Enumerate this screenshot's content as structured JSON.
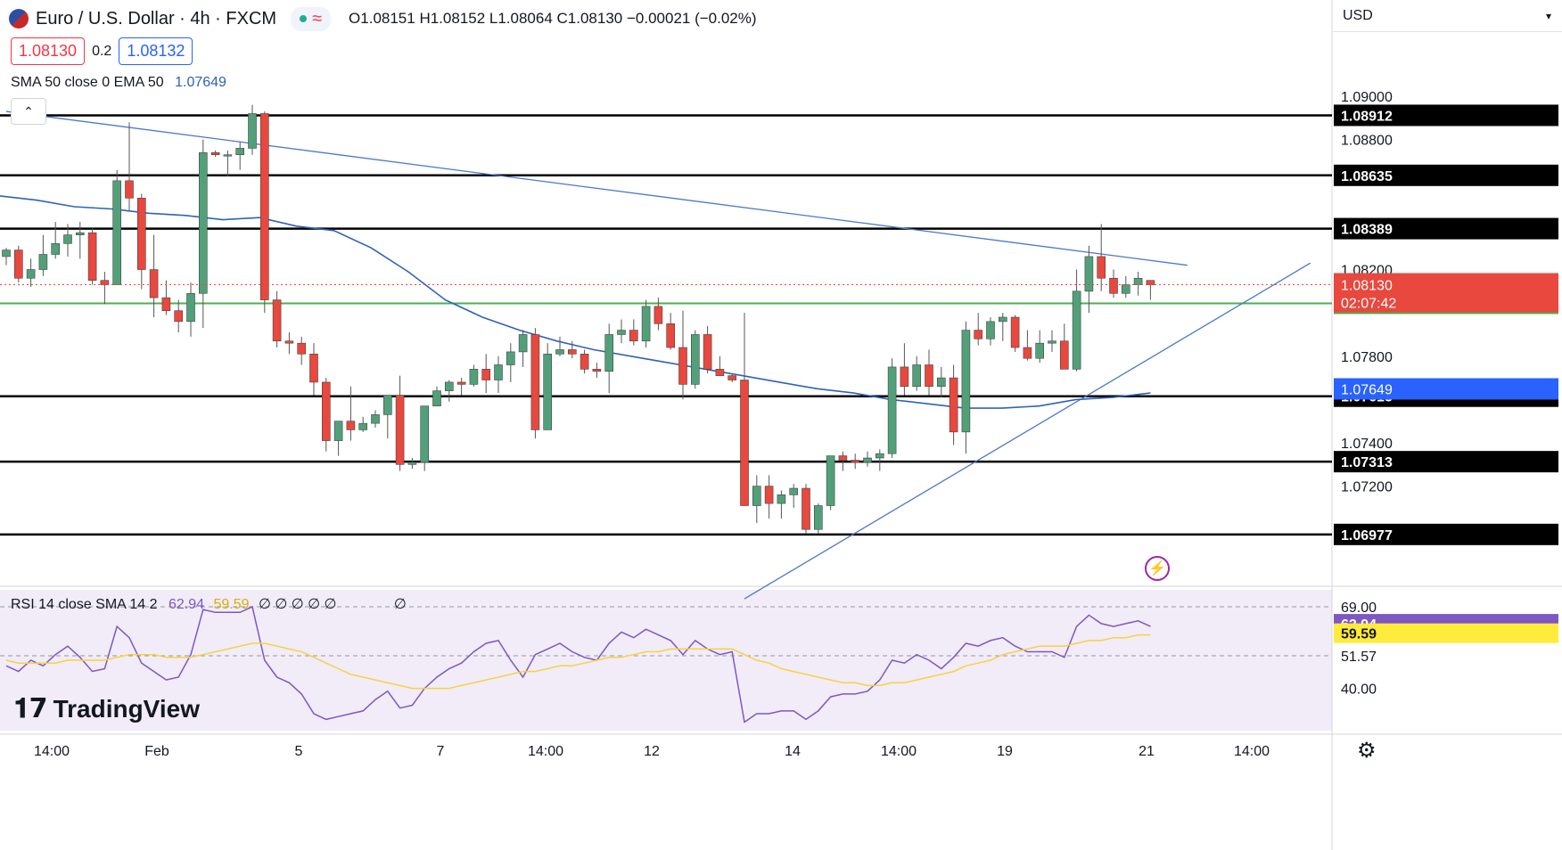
{
  "header": {
    "symbol": "Euro / U.S. Dollar · 4h · FXCM",
    "ohlc": "O1.08151 H1.08152 L1.08064 C1.08130 −0.00021 (−0.02%)",
    "bid": "1.08130",
    "spread": "0.2",
    "ask": "1.08132",
    "currency": "USD"
  },
  "indicator_labels": {
    "sma": "SMA 50 close 0 EMA 50",
    "sma_value": "1.07649",
    "rsi": "RSI 14 close SMA 14 2",
    "rsi_value": "62.94",
    "rsi_sma_value": "59.59",
    "rsi_extra": "∅ ∅ ∅ ∅ ∅",
    "rsi_extra2": "∅"
  },
  "colors": {
    "up": "#52a07a",
    "down": "#e8483e",
    "sma": "#2f62b8",
    "trend": "#4a78c8",
    "support_green": "#4caf50",
    "rsi_line": "#7e57c2",
    "rsi_sma": "#f5d33f",
    "rsi_bg": "#ede7f6"
  },
  "logo": "TradingView",
  "icons": [
    "flag-icon",
    "market-status-icon",
    "collapse-icon",
    "lightning-icon",
    "settings-icon"
  ],
  "chart_data": [
    {
      "type": "candlestick",
      "title": "Euro / U.S. Dollar · 4h · FXCM",
      "y_ticks": [
        "1.09000",
        "1.08800",
        "1.08200",
        "1.07800",
        "1.07400",
        "1.07200"
      ],
      "ylim": [
        1.0675,
        1.0928
      ],
      "x_ticks": [
        "14:00",
        "Feb",
        "5",
        "7",
        "14:00",
        "12",
        "14",
        "14:00",
        "19",
        "21",
        "14:00"
      ],
      "horizontal_levels": [
        {
          "value": 1.08912,
          "label": "1.08912"
        },
        {
          "value": 1.08635,
          "label": "1.08635"
        },
        {
          "value": 1.08389,
          "label": "1.08389"
        },
        {
          "value": 1.07615,
          "label": "1.07615"
        },
        {
          "value": 1.07313,
          "label": "1.07313"
        },
        {
          "value": 1.06977,
          "label": "1.06977"
        }
      ],
      "support_level": {
        "value": 1.08044,
        "label": "1.08044"
      },
      "price_label": {
        "value": 1.0813,
        "label": "1.08130",
        "countdown": "02:07:42"
      },
      "sma_label": {
        "value": 1.07649,
        "label": "1.07649"
      },
      "candles": [
        [
          1.0826,
          1.083,
          1.0822,
          1.0829
        ],
        [
          1.0829,
          1.0831,
          1.0814,
          1.0816
        ],
        [
          1.0816,
          1.0825,
          1.0812,
          1.082
        ],
        [
          1.082,
          1.0836,
          1.0817,
          1.0827
        ],
        [
          1.0827,
          1.0842,
          1.0825,
          1.0832
        ],
        [
          1.0832,
          1.0841,
          1.0826,
          1.0836
        ],
        [
          1.0836,
          1.0842,
          1.0825,
          1.0837
        ],
        [
          1.0837,
          1.0839,
          1.0813,
          1.0815
        ],
        [
          1.0815,
          1.0819,
          1.0804,
          1.0813
        ],
        [
          1.0813,
          1.0866,
          1.0813,
          1.0861
        ],
        [
          1.0861,
          1.0888,
          1.0847,
          1.0853
        ],
        [
          1.0853,
          1.0855,
          1.0811,
          1.082
        ],
        [
          1.082,
          1.0836,
          1.0798,
          1.0807
        ],
        [
          1.0807,
          1.0815,
          1.0799,
          1.0801
        ],
        [
          1.0801,
          1.0806,
          1.0791,
          1.0796
        ],
        [
          1.0796,
          1.0814,
          1.0789,
          1.0809
        ],
        [
          1.0809,
          1.088,
          1.0793,
          1.0874
        ],
        [
          1.0874,
          1.0875,
          1.0872,
          1.0873
        ],
        [
          1.0873,
          1.0875,
          1.0863,
          1.0873
        ],
        [
          1.0873,
          1.0879,
          1.0866,
          1.0876
        ],
        [
          1.0876,
          1.0896,
          1.0873,
          1.0892
        ],
        [
          1.0892,
          1.0893,
          1.08,
          1.0806
        ],
        [
          1.0806,
          1.081,
          1.0784,
          1.0787
        ],
        [
          1.0787,
          1.0791,
          1.0781,
          1.0786
        ],
        [
          1.0786,
          1.0789,
          1.0776,
          1.0781
        ],
        [
          1.0781,
          1.0786,
          1.0762,
          1.0768
        ],
        [
          1.0768,
          1.077,
          1.0736,
          1.0741
        ],
        [
          1.0741,
          1.0749,
          1.0734,
          1.075
        ],
        [
          1.075,
          1.0766,
          1.0741,
          1.0746
        ],
        [
          1.0746,
          1.0752,
          1.0745,
          1.0749
        ],
        [
          1.0749,
          1.0755,
          1.0747,
          1.0753
        ],
        [
          1.0753,
          1.0762,
          1.0742,
          1.0762
        ],
        [
          1.0762,
          1.0771,
          1.0727,
          1.073
        ],
        [
          1.073,
          1.0733,
          1.0728,
          1.0731
        ],
        [
          1.0731,
          1.0757,
          1.0727,
          1.0757
        ],
        [
          1.0757,
          1.0766,
          1.0759,
          1.0764
        ],
        [
          1.0764,
          1.0769,
          1.0759,
          1.0768
        ],
        [
          1.0768,
          1.077,
          1.0762,
          1.0767
        ],
        [
          1.0767,
          1.0776,
          1.0766,
          1.0774
        ],
        [
          1.0774,
          1.0781,
          1.0763,
          1.0769
        ],
        [
          1.0769,
          1.078,
          1.0763,
          1.0776
        ],
        [
          1.0776,
          1.0786,
          1.0768,
          1.0782
        ],
        [
          1.0782,
          1.0792,
          1.0775,
          1.079
        ],
        [
          1.079,
          1.0793,
          1.0742,
          1.0746
        ],
        [
          1.0746,
          1.0786,
          1.0746,
          1.0781
        ],
        [
          1.0781,
          1.0789,
          1.078,
          1.0783
        ],
        [
          1.0783,
          1.0787,
          1.0779,
          1.0781
        ],
        [
          1.0781,
          1.0783,
          1.0772,
          1.0774
        ],
        [
          1.0774,
          1.0777,
          1.077,
          1.0773
        ],
        [
          1.0773,
          1.0795,
          1.0763,
          1.079
        ],
        [
          1.079,
          1.0797,
          1.0786,
          1.0792
        ],
        [
          1.0792,
          1.0797,
          1.0785,
          1.0787
        ],
        [
          1.0787,
          1.0806,
          1.0784,
          1.0803
        ],
        [
          1.0803,
          1.0807,
          1.0792,
          1.0795
        ],
        [
          1.0795,
          1.08,
          1.0783,
          1.0784
        ],
        [
          1.0784,
          1.0801,
          1.076,
          1.0767
        ],
        [
          1.0767,
          1.0792,
          1.0765,
          1.079
        ],
        [
          1.079,
          1.0794,
          1.0772,
          1.0774
        ],
        [
          1.0774,
          1.078,
          1.0771,
          1.0771
        ],
        [
          1.0771,
          1.0772,
          1.0768,
          1.0769
        ],
        [
          1.0769,
          1.08,
          1.0713,
          1.0711
        ],
        [
          1.0711,
          1.0725,
          1.0703,
          1.072
        ],
        [
          1.072,
          1.0725,
          1.0705,
          1.0712
        ],
        [
          1.0712,
          1.0718,
          1.0705,
          1.0716
        ],
        [
          1.0716,
          1.0721,
          1.071,
          1.0719
        ],
        [
          1.0719,
          1.0721,
          1.0698,
          1.07
        ],
        [
          1.07,
          1.0712,
          1.0698,
          1.0711
        ],
        [
          1.0711,
          1.0734,
          1.0709,
          1.0734
        ],
        [
          1.0734,
          1.0736,
          1.0727,
          1.0732
        ],
        [
          1.0732,
          1.0735,
          1.0728,
          1.0731
        ],
        [
          1.0731,
          1.0736,
          1.0729,
          1.0733
        ],
        [
          1.0733,
          1.0737,
          1.0727,
          1.0735
        ],
        [
          1.0735,
          1.0779,
          1.0733,
          1.0775
        ],
        [
          1.0775,
          1.0786,
          1.0762,
          1.0766
        ],
        [
          1.0766,
          1.078,
          1.0764,
          1.0776
        ],
        [
          1.0776,
          1.0783,
          1.0762,
          1.0766
        ],
        [
          1.0766,
          1.0775,
          1.0761,
          1.077
        ],
        [
          1.077,
          1.0776,
          1.0739,
          1.0745
        ],
        [
          1.0745,
          1.0796,
          1.0735,
          1.0792
        ],
        [
          1.0792,
          1.08,
          1.0785,
          1.0788
        ],
        [
          1.0788,
          1.0798,
          1.0785,
          1.0796
        ],
        [
          1.0796,
          1.08,
          1.0787,
          1.0798
        ],
        [
          1.0798,
          1.0799,
          1.0782,
          1.0784
        ],
        [
          1.0784,
          1.0792,
          1.0778,
          1.0779
        ],
        [
          1.0779,
          1.0792,
          1.0777,
          1.0786
        ],
        [
          1.0786,
          1.0792,
          1.0782,
          1.0787
        ],
        [
          1.0787,
          1.0795,
          1.0774,
          1.0774
        ],
        [
          1.0774,
          1.082,
          1.0773,
          1.081
        ],
        [
          1.081,
          1.0831,
          1.08,
          1.0826
        ],
        [
          1.0826,
          1.0841,
          1.081,
          1.0816
        ],
        [
          1.0816,
          1.082,
          1.0807,
          1.0809
        ],
        [
          1.0809,
          1.0817,
          1.0807,
          1.0813
        ],
        [
          1.0813,
          1.0819,
          1.0808,
          1.0816
        ],
        [
          1.0815,
          1.0815,
          1.0806,
          1.0813
        ]
      ],
      "sma50": [
        1.0854,
        1.0852,
        1.0849,
        1.0848,
        1.0846,
        1.0845,
        1.0843,
        1.0844,
        1.084,
        1.0838,
        1.083,
        1.0819,
        1.0806,
        1.0798,
        1.0792,
        1.0787,
        1.0783,
        1.078,
        1.0777,
        1.0774,
        1.0771,
        1.0768,
        1.0765,
        1.0763,
        1.076,
        1.0758,
        1.0756,
        1.0756,
        1.0757,
        1.076,
        1.0761,
        1.0763
      ],
      "trend_lines": [
        {
          "from": [
            0,
            1.0893
          ],
          "to": [
            96,
            1.0822
          ]
        },
        {
          "from": [
            60,
            1.0668
          ],
          "to": [
            106,
            1.0823
          ]
        }
      ]
    },
    {
      "type": "line",
      "title": "RSI 14 close SMA 14 2",
      "ylim": [
        25,
        75
      ],
      "y_ticks": [
        "69.00",
        "51.57",
        "40.00"
      ],
      "levels": [
        69,
        51.57
      ],
      "series": [
        {
          "name": "RSI",
          "color": "#7e57c2",
          "values": [
            48,
            46,
            50,
            48,
            52,
            55,
            51,
            46,
            47,
            62,
            58,
            49,
            46,
            43,
            44,
            52,
            68,
            67,
            67,
            67,
            69,
            50,
            44,
            42,
            38,
            31,
            29,
            30,
            31,
            32,
            36,
            39,
            33,
            34,
            40,
            44,
            47,
            49,
            53,
            56,
            57,
            50,
            44,
            52,
            54,
            56,
            53,
            51,
            50,
            56,
            60,
            58,
            61,
            59,
            57,
            52,
            57,
            54,
            52,
            53,
            28,
            31,
            31,
            32,
            32,
            29,
            32,
            37,
            38,
            38,
            39,
            43,
            50,
            49,
            52,
            50,
            47,
            51,
            56,
            55,
            57,
            58,
            55,
            53,
            53,
            53,
            51,
            62,
            66,
            63,
            62,
            63,
            64,
            62
          ]
        },
        {
          "name": "RSI SMA",
          "color": "#f5d33f",
          "values": [
            50,
            49,
            49,
            49,
            49,
            50,
            50,
            50,
            50,
            51,
            52,
            52,
            52,
            51,
            51,
            51,
            52,
            53,
            54,
            55,
            56,
            56,
            55,
            54,
            53,
            51,
            49,
            47,
            45,
            44,
            43,
            42,
            41,
            40,
            40,
            40,
            40,
            41,
            42,
            43,
            44,
            45,
            46,
            46,
            47,
            48,
            48,
            49,
            50,
            51,
            51,
            52,
            53,
            53,
            54,
            54,
            54,
            54,
            54,
            54,
            52,
            50,
            49,
            47,
            46,
            45,
            44,
            43,
            42,
            42,
            41,
            41,
            42,
            42,
            43,
            44,
            45,
            46,
            48,
            49,
            50,
            52,
            53,
            54,
            55,
            55,
            55,
            56,
            57,
            57,
            58,
            58,
            59,
            59
          ]
        }
      ]
    }
  ]
}
